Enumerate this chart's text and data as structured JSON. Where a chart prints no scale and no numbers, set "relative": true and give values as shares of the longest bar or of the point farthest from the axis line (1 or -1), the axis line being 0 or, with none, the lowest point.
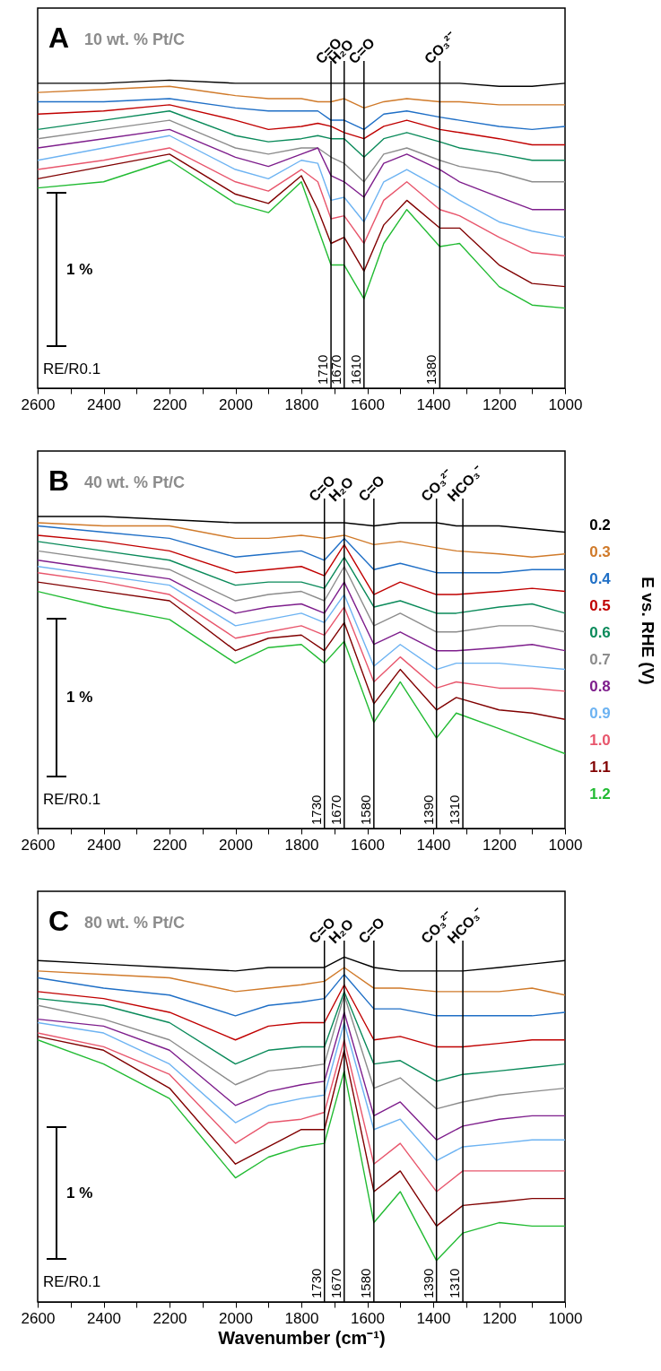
{
  "chart_data": [
    {
      "type": "line",
      "title": "A",
      "subtitle": "10 wt. % Pt/C",
      "relative": true,
      "grid": false,
      "tick_labels": "x",
      "x": [
        2600,
        2400,
        2200,
        2000,
        1900,
        1800,
        1750,
        1710,
        1670,
        1610,
        1550,
        1480,
        1380,
        1320,
        1200,
        1100,
        1000
      ],
      "xlim": [
        2600,
        1000
      ],
      "xticks": [
        2600,
        {
          "value": 2500,
          "label": null
        },
        2400,
        {
          "value": 2300,
          "label": null
        },
        2200,
        {
          "value": 2100,
          "label": null
        },
        2000,
        {
          "value": 1900,
          "label": null
        },
        1800,
        {
          "value": 1700,
          "label": null
        },
        1600,
        {
          "value": 1500,
          "label": null
        },
        1400,
        {
          "value": 1300,
          "label": null
        },
        1200,
        {
          "value": 1100,
          "label": null
        },
        1000
      ],
      "series": [
        {
          "color": "#000000",
          "values": [
            0.99,
            0.99,
            1.0,
            0.99,
            0.99,
            0.99,
            0.99,
            0.99,
            0.99,
            0.99,
            0.99,
            0.99,
            0.99,
            0.99,
            0.98,
            0.98,
            0.99
          ]
        },
        {
          "color": "#d07a2a",
          "values": [
            0.96,
            0.97,
            0.98,
            0.95,
            0.94,
            0.94,
            0.93,
            0.93,
            0.94,
            0.91,
            0.93,
            0.94,
            0.93,
            0.93,
            0.92,
            0.92,
            0.92
          ]
        },
        {
          "color": "#1f6fc6",
          "values": [
            0.93,
            0.93,
            0.94,
            0.91,
            0.9,
            0.9,
            0.9,
            0.87,
            0.87,
            0.84,
            0.89,
            0.9,
            0.88,
            0.87,
            0.85,
            0.84,
            0.85
          ]
        },
        {
          "color": "#c00000",
          "values": [
            0.89,
            0.9,
            0.92,
            0.87,
            0.84,
            0.85,
            0.86,
            0.85,
            0.83,
            0.81,
            0.85,
            0.87,
            0.84,
            0.83,
            0.81,
            0.79,
            0.79
          ]
        },
        {
          "color": "#0a8a5a",
          "values": [
            0.84,
            0.87,
            0.9,
            0.82,
            0.8,
            0.81,
            0.82,
            0.81,
            0.81,
            0.75,
            0.81,
            0.83,
            0.8,
            0.78,
            0.76,
            0.74,
            0.74
          ]
        },
        {
          "color": "#8c8c8c",
          "values": [
            0.81,
            0.84,
            0.87,
            0.78,
            0.76,
            0.78,
            0.78,
            0.75,
            0.73,
            0.67,
            0.76,
            0.78,
            0.74,
            0.72,
            0.7,
            0.67,
            0.67
          ]
        },
        {
          "color": "#7e1e8c",
          "values": [
            0.78,
            0.81,
            0.84,
            0.75,
            0.72,
            0.76,
            0.78,
            0.69,
            0.67,
            0.62,
            0.73,
            0.76,
            0.71,
            0.67,
            0.62,
            0.58,
            0.58
          ]
        },
        {
          "color": "#6db3f2",
          "values": [
            0.74,
            0.78,
            0.82,
            0.71,
            0.68,
            0.74,
            0.73,
            0.61,
            0.62,
            0.54,
            0.67,
            0.71,
            0.65,
            0.61,
            0.54,
            0.51,
            0.49
          ]
        },
        {
          "color": "#e8566c",
          "values": [
            0.71,
            0.74,
            0.78,
            0.67,
            0.64,
            0.71,
            0.67,
            0.55,
            0.56,
            0.47,
            0.61,
            0.67,
            0.58,
            0.56,
            0.49,
            0.44,
            0.43
          ]
        },
        {
          "color": "#800000",
          "values": [
            0.68,
            0.72,
            0.76,
            0.63,
            0.6,
            0.69,
            0.58,
            0.47,
            0.49,
            0.38,
            0.53,
            0.61,
            0.52,
            0.52,
            0.4,
            0.34,
            0.33
          ]
        },
        {
          "color": "#22bb33",
          "values": [
            0.65,
            0.67,
            0.74,
            0.6,
            0.57,
            0.67,
            0.52,
            0.4,
            0.4,
            0.29,
            0.47,
            0.58,
            0.46,
            0.47,
            0.33,
            0.27,
            0.26
          ]
        }
      ],
      "ref_lines": [
        {
          "axis": "x",
          "value": 1710,
          "label": "1710"
        },
        {
          "axis": "x",
          "value": 1670,
          "label": "1670"
        },
        {
          "axis": "x",
          "value": 1610,
          "label": "1610"
        },
        {
          "axis": "x",
          "value": 1380,
          "label": "1380"
        }
      ],
      "annotations": [
        "C=O",
        "H₂O",
        "C=O",
        "CO₃²⁻",
        "1 %",
        "RE/R0.1"
      ]
    },
    {
      "type": "line",
      "title": "B",
      "subtitle": "40 wt. % Pt/C",
      "relative": true,
      "grid": false,
      "tick_labels": "x",
      "legend": "right",
      "legend_title": "E vs. RHE (V)",
      "x": [
        2600,
        2400,
        2200,
        2000,
        1900,
        1800,
        1730,
        1670,
        1580,
        1500,
        1390,
        1330,
        1200,
        1100,
        1000
      ],
      "xlim": [
        2600,
        1000
      ],
      "xticks": [
        2600,
        {
          "value": 2500,
          "label": null
        },
        2400,
        {
          "value": 2300,
          "label": null
        },
        2200,
        {
          "value": 2100,
          "label": null
        },
        2000,
        {
          "value": 1900,
          "label": null
        },
        1800,
        {
          "value": 1700,
          "label": null
        },
        1600,
        {
          "value": 1500,
          "label": null
        },
        1400,
        {
          "value": 1300,
          "label": null
        },
        1200,
        {
          "value": 1100,
          "label": null
        },
        1000
      ],
      "series": [
        {
          "name": "0.2",
          "color": "#000000",
          "values": [
            1.0,
            1.0,
            0.99,
            0.98,
            0.98,
            0.98,
            0.98,
            0.98,
            0.97,
            0.98,
            0.98,
            0.97,
            0.97,
            0.96,
            0.95
          ]
        },
        {
          "name": "0.3",
          "color": "#d07a2a",
          "values": [
            0.98,
            0.97,
            0.97,
            0.93,
            0.93,
            0.94,
            0.93,
            0.94,
            0.91,
            0.92,
            0.9,
            0.89,
            0.88,
            0.87,
            0.88
          ]
        },
        {
          "name": "0.4",
          "color": "#1f6fc6",
          "values": [
            0.97,
            0.95,
            0.93,
            0.87,
            0.88,
            0.89,
            0.86,
            0.93,
            0.83,
            0.85,
            0.82,
            0.82,
            0.82,
            0.83,
            0.83
          ]
        },
        {
          "name": "0.5",
          "color": "#c00000",
          "values": [
            0.94,
            0.92,
            0.89,
            0.82,
            0.83,
            0.84,
            0.81,
            0.91,
            0.75,
            0.79,
            0.75,
            0.75,
            0.76,
            0.77,
            0.76
          ]
        },
        {
          "name": "0.6",
          "color": "#0a8a5a",
          "values": [
            0.92,
            0.89,
            0.86,
            0.78,
            0.79,
            0.79,
            0.77,
            0.87,
            0.71,
            0.73,
            0.69,
            0.69,
            0.71,
            0.72,
            0.69
          ]
        },
        {
          "name": "0.7",
          "color": "#8c8c8c",
          "values": [
            0.89,
            0.86,
            0.83,
            0.73,
            0.75,
            0.76,
            0.73,
            0.84,
            0.65,
            0.69,
            0.63,
            0.63,
            0.65,
            0.65,
            0.63
          ]
        },
        {
          "name": "0.8",
          "color": "#7e1e8c",
          "values": [
            0.86,
            0.83,
            0.8,
            0.69,
            0.71,
            0.72,
            0.69,
            0.79,
            0.59,
            0.63,
            0.57,
            0.57,
            0.58,
            0.59,
            0.57
          ]
        },
        {
          "name": "0.9",
          "color": "#6db3f2",
          "values": [
            0.84,
            0.81,
            0.78,
            0.65,
            0.67,
            0.69,
            0.66,
            0.75,
            0.52,
            0.59,
            0.51,
            0.53,
            0.53,
            0.52,
            0.51
          ]
        },
        {
          "name": "1.0",
          "color": "#e8566c",
          "values": [
            0.82,
            0.79,
            0.75,
            0.61,
            0.63,
            0.65,
            0.62,
            0.71,
            0.47,
            0.55,
            0.45,
            0.47,
            0.45,
            0.45,
            0.44
          ]
        },
        {
          "name": "1.1",
          "color": "#800000",
          "values": [
            0.79,
            0.76,
            0.73,
            0.57,
            0.61,
            0.62,
            0.57,
            0.66,
            0.4,
            0.51,
            0.38,
            0.42,
            0.38,
            0.37,
            0.35
          ]
        },
        {
          "name": "1.2",
          "color": "#22bb33",
          "values": [
            0.76,
            0.71,
            0.67,
            0.53,
            0.58,
            0.59,
            0.53,
            0.6,
            0.34,
            0.47,
            0.29,
            0.37,
            0.32,
            0.28,
            0.24
          ]
        }
      ],
      "ref_lines": [
        {
          "axis": "x",
          "value": 1730,
          "label": "1730"
        },
        {
          "axis": "x",
          "value": 1670,
          "label": "1670"
        },
        {
          "axis": "x",
          "value": 1580,
          "label": "1580"
        },
        {
          "axis": "x",
          "value": 1390,
          "label": "1390"
        },
        {
          "axis": "x",
          "value": 1310,
          "label": "1310"
        }
      ],
      "annotations": [
        "C=O",
        "H₂O",
        "C=O",
        "CO₃²⁻",
        "HCO₃⁻",
        "1 %",
        "RE/R0.1"
      ]
    },
    {
      "type": "line",
      "title": "C",
      "subtitle": "80 wt. % Pt/C",
      "relative": true,
      "grid": false,
      "tick_labels": "x",
      "xlabel": "Wavenumber (cm⁻¹)",
      "x": [
        2600,
        2400,
        2200,
        2000,
        1900,
        1800,
        1730,
        1670,
        1580,
        1500,
        1390,
        1310,
        1200,
        1100,
        1000
      ],
      "xlim": [
        2600,
        1000
      ],
      "xticks": [
        2600,
        {
          "value": 2500,
          "label": null
        },
        2400,
        {
          "value": 2300,
          "label": null
        },
        2200,
        {
          "value": 2100,
          "label": null
        },
        2000,
        {
          "value": 1900,
          "label": null
        },
        1800,
        {
          "value": 1700,
          "label": null
        },
        1600,
        {
          "value": 1500,
          "label": null
        },
        1400,
        {
          "value": 1300,
          "label": null
        },
        1200,
        {
          "value": 1100,
          "label": null
        },
        1000
      ],
      "series": [
        {
          "color": "#000000",
          "values": [
            0.99,
            0.98,
            0.97,
            0.96,
            0.97,
            0.97,
            0.97,
            1.0,
            0.97,
            0.96,
            0.96,
            0.96,
            0.97,
            0.98,
            0.99
          ]
        },
        {
          "color": "#d07a2a",
          "values": [
            0.96,
            0.95,
            0.94,
            0.9,
            0.91,
            0.92,
            0.93,
            0.97,
            0.91,
            0.91,
            0.9,
            0.9,
            0.9,
            0.91,
            0.89
          ]
        },
        {
          "color": "#1f6fc6",
          "values": [
            0.94,
            0.91,
            0.89,
            0.83,
            0.86,
            0.87,
            0.88,
            0.95,
            0.85,
            0.85,
            0.83,
            0.83,
            0.83,
            0.83,
            0.84
          ]
        },
        {
          "color": "#c00000",
          "values": [
            0.9,
            0.88,
            0.84,
            0.76,
            0.8,
            0.81,
            0.81,
            0.92,
            0.76,
            0.77,
            0.74,
            0.74,
            0.75,
            0.76,
            0.76
          ]
        },
        {
          "color": "#0a8a5a",
          "values": [
            0.88,
            0.86,
            0.81,
            0.69,
            0.73,
            0.74,
            0.74,
            0.9,
            0.69,
            0.7,
            0.64,
            0.66,
            0.67,
            0.68,
            0.69
          ]
        },
        {
          "color": "#8c8c8c",
          "values": [
            0.86,
            0.82,
            0.76,
            0.63,
            0.67,
            0.68,
            0.69,
            0.89,
            0.62,
            0.65,
            0.56,
            0.58,
            0.6,
            0.61,
            0.62
          ]
        },
        {
          "color": "#7e1e8c",
          "values": [
            0.82,
            0.8,
            0.73,
            0.57,
            0.61,
            0.63,
            0.64,
            0.84,
            0.54,
            0.58,
            0.47,
            0.51,
            0.53,
            0.54,
            0.54
          ]
        },
        {
          "color": "#6db3f2",
          "values": [
            0.81,
            0.78,
            0.69,
            0.52,
            0.57,
            0.59,
            0.6,
            0.81,
            0.5,
            0.53,
            0.41,
            0.45,
            0.46,
            0.47,
            0.47
          ]
        },
        {
          "color": "#e8566c",
          "values": [
            0.78,
            0.74,
            0.66,
            0.46,
            0.52,
            0.53,
            0.55,
            0.76,
            0.4,
            0.46,
            0.32,
            0.38,
            0.38,
            0.38,
            0.38
          ]
        },
        {
          "color": "#800000",
          "values": [
            0.77,
            0.73,
            0.62,
            0.4,
            0.45,
            0.5,
            0.5,
            0.73,
            0.32,
            0.38,
            0.22,
            0.28,
            0.29,
            0.3,
            0.3
          ]
        },
        {
          "color": "#22bb33",
          "values": [
            0.76,
            0.69,
            0.59,
            0.36,
            0.42,
            0.45,
            0.46,
            0.67,
            0.23,
            0.32,
            0.12,
            0.2,
            0.23,
            0.22,
            0.22
          ]
        }
      ],
      "ref_lines": [
        {
          "axis": "x",
          "value": 1730,
          "label": "1730"
        },
        {
          "axis": "x",
          "value": 1670,
          "label": "1670"
        },
        {
          "axis": "x",
          "value": 1580,
          "label": "1580"
        },
        {
          "axis": "x",
          "value": 1390,
          "label": "1390"
        },
        {
          "axis": "x",
          "value": 1310,
          "label": "1310"
        }
      ],
      "annotations": [
        "C=O",
        "H₂O",
        "C=O",
        "CO₃²⁻",
        "HCO₃⁻",
        "1 %",
        "RE/R0.1"
      ]
    }
  ]
}
